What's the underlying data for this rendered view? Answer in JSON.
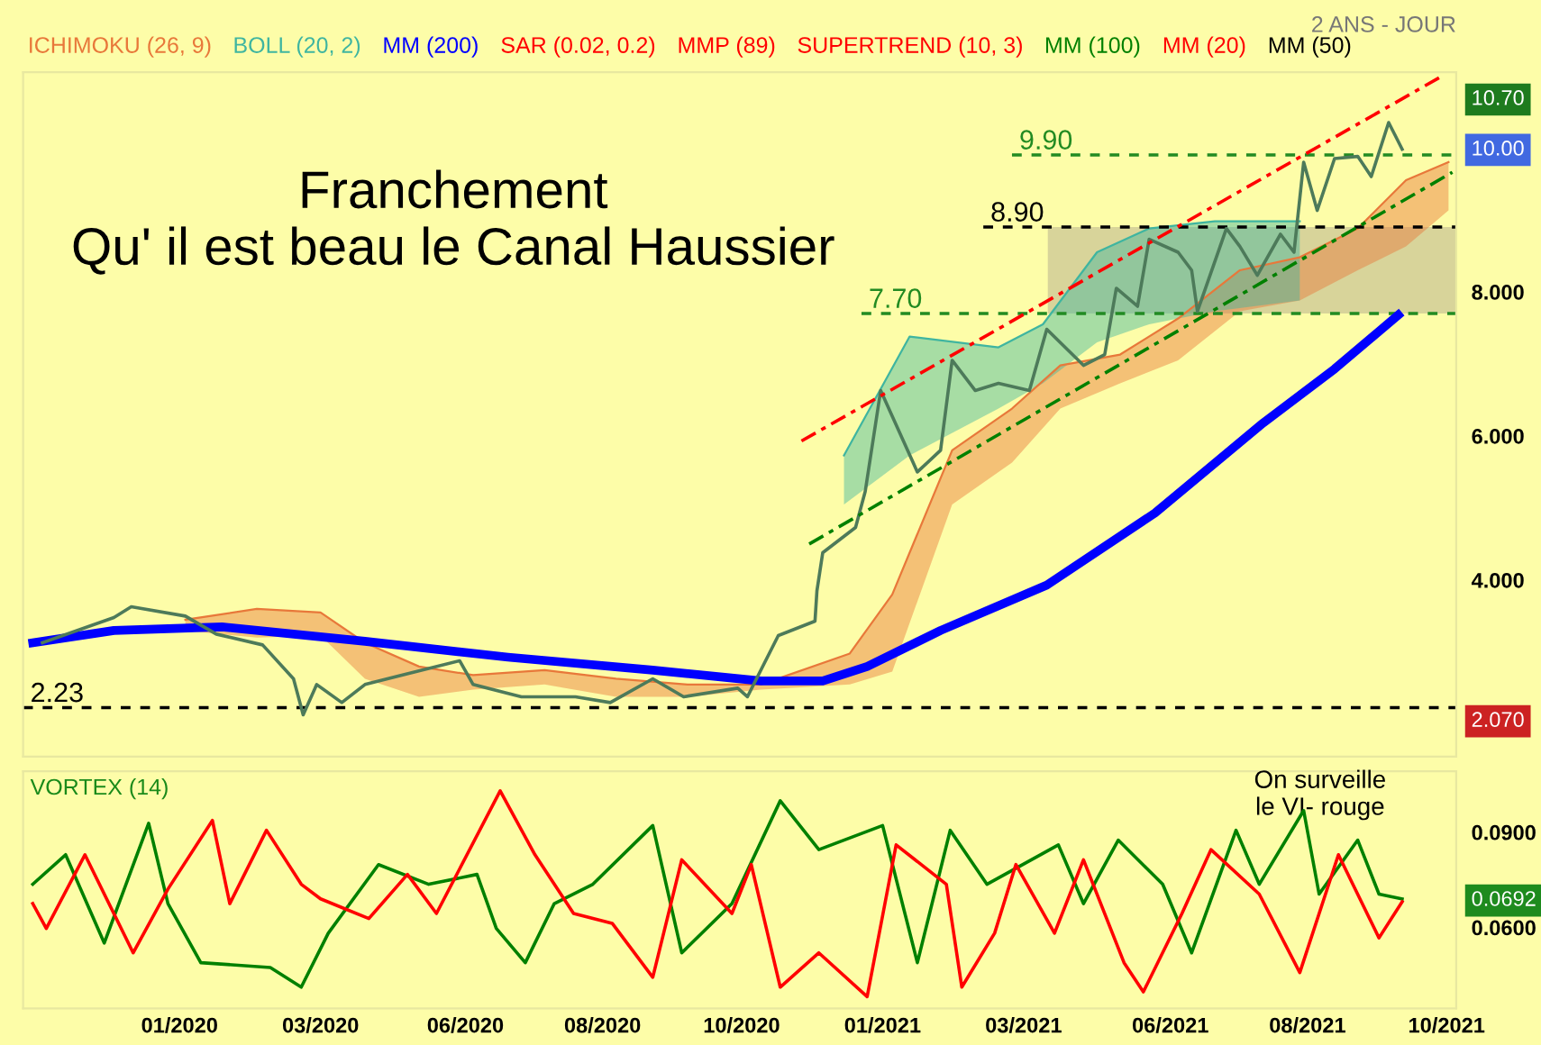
{
  "chart_data": [
    {
      "type": "line",
      "subtitle": "2 ANS - JOUR",
      "legend": "top left",
      "tick_labels": "y",
      "xlim": [
        "2019-10-16",
        "2021-10-27"
      ],
      "ylim": [
        1.55,
        11.05
      ],
      "yticks": [
        {
          "value": 2.07,
          "label": "2.070"
        },
        {
          "value": 4,
          "label": "4.000"
        },
        {
          "value": 6,
          "label": "6.000"
        },
        {
          "value": 8,
          "label": "8.000"
        },
        {
          "value": 10,
          "label": "10.00"
        },
        {
          "value": 10.7,
          "label": "10.70"
        }
      ],
      "annotations": [
        "Franchement\nQu' il est beau le Canal Haussier"
      ],
      "bands": [
        {
          "axis": "y",
          "from": 7.7,
          "to": 8.9,
          "color": "#d8d49a"
        }
      ],
      "ref_lines": [
        {
          "axis": "y",
          "value": 9.9,
          "label": "9.90",
          "color": "#228b22",
          "line_style": "dashed"
        },
        {
          "axis": "y",
          "value": 8.9,
          "label": "8.90",
          "color": "#000000",
          "line_style": "dashed"
        },
        {
          "axis": "y",
          "value": 7.7,
          "label": "7.70",
          "color": "#228b22",
          "line_style": "dashed"
        },
        {
          "axis": "y",
          "value": 2.23,
          "label": "2.23",
          "color": "#000000",
          "line_style": "dashed"
        }
      ],
      "series": [
        {
          "name": "ICHIMOKU (26, 9)",
          "type": "line",
          "color": "#e8783a",
          "x": [
            "2020-01-08",
            "2020-02-14",
            "2020-03-18",
            "2020-04-10",
            "2020-05-08",
            "2020-06-05",
            "2020-07-12",
            "2020-08-18",
            "2020-09-24",
            "2020-11-01",
            "2020-12-17",
            "2021-01-08",
            "2021-02-08",
            "2021-03-11",
            "2021-04-05",
            "2021-05-06",
            "2021-06-05",
            "2021-07-07",
            "2021-08-07",
            "2021-09-06",
            "2021-10-01",
            "2021-10-23"
          ],
          "values": [
            3.45,
            3.6,
            3.55,
            3.13,
            2.8,
            2.68,
            2.75,
            2.63,
            2.55,
            2.55,
            2.98,
            3.8,
            5.8,
            6.38,
            6.98,
            7.13,
            7.63,
            8.3,
            8.48,
            8.88,
            9.55,
            9.8
          ],
          "lower": [
            3.3,
            3.2,
            3.23,
            2.63,
            2.38,
            2.48,
            2.55,
            2.38,
            2.38,
            2.48,
            2.55,
            2.73,
            5.05,
            5.63,
            6.38,
            6.73,
            7.05,
            7.73,
            7.88,
            8.3,
            8.63,
            9.13
          ],
          "upper": [
            3.45,
            3.6,
            3.55,
            3.13,
            2.8,
            2.68,
            2.75,
            2.63,
            2.55,
            2.55,
            2.98,
            3.8,
            5.8,
            6.38,
            6.98,
            7.13,
            7.63,
            8.3,
            8.48,
            8.88,
            9.55,
            9.8
          ]
        },
        {
          "name": "BOLL (20, 2)",
          "type": "line",
          "color": "#3fb5a0",
          "x": [
            "2020-12-14",
            "2021-01-17",
            "2021-03-04",
            "2021-03-27",
            "2021-04-24",
            "2021-05-21",
            "2021-06-24",
            "2021-08-07"
          ],
          "values": [
            5.73,
            7.38,
            7.23,
            7.55,
            8.55,
            8.88,
            8.98,
            8.98
          ],
          "lower": [
            5.05,
            5.73,
            6.38,
            6.73,
            7.3,
            7.55,
            7.73,
            7.88
          ],
          "upper": [
            5.73,
            7.38,
            7.23,
            7.55,
            8.55,
            8.88,
            8.98,
            8.98
          ]
        },
        {
          "type": "line",
          "color": "#4d7a5a",
          "x": [
            "2019-10-26",
            "2019-12-02",
            "2019-12-11",
            "2020-01-08",
            "2020-01-24",
            "2020-02-17",
            "2020-03-04",
            "2020-03-09",
            "2020-03-16",
            "2020-03-29",
            "2020-04-10",
            "2020-04-29",
            "2020-05-29",
            "2020-06-05",
            "2020-06-30",
            "2020-07-28",
            "2020-08-15",
            "2020-09-06",
            "2020-09-22",
            "2020-10-20",
            "2020-10-25",
            "2020-11-10",
            "2020-11-29",
            "2020-11-30",
            "2020-12-03",
            "2020-12-20",
            "2020-12-25",
            "2021-01-02",
            "2021-01-21",
            "2021-02-02",
            "2021-02-08",
            "2021-02-20",
            "2021-03-04",
            "2021-03-20",
            "2021-03-29",
            "2021-04-17",
            "2021-04-28",
            "2021-05-04",
            "2021-05-15",
            "2021-05-21",
            "2021-06-05",
            "2021-06-12",
            "2021-06-15",
            "2021-06-30",
            "2021-07-07",
            "2021-07-16",
            "2021-07-28",
            "2021-08-04",
            "2021-08-09",
            "2021-08-16",
            "2021-08-25",
            "2021-09-06",
            "2021-09-13",
            "2021-09-22",
            "2021-09-29"
          ],
          "values": [
            3.13,
            3.48,
            3.63,
            3.5,
            3.25,
            3.1,
            2.63,
            2.13,
            2.55,
            2.3,
            2.55,
            2.68,
            2.88,
            2.55,
            2.38,
            2.38,
            2.3,
            2.63,
            2.38,
            2.5,
            2.38,
            3.23,
            3.43,
            3.85,
            4.38,
            4.73,
            5.23,
            6.63,
            5.5,
            5.8,
            7.05,
            6.63,
            6.73,
            6.63,
            7.48,
            6.98,
            7.13,
            8.05,
            7.8,
            8.73,
            8.55,
            8.3,
            7.73,
            8.88,
            8.63,
            8.23,
            8.8,
            8.55,
            9.8,
            9.13,
            9.85,
            9.88,
            9.6,
            10.35,
            9.98
          ]
        },
        {
          "name": "MM (200)",
          "color": "#0000ff",
          "x": [
            "2019-10-21",
            "2019-12-02",
            "2020-01-27",
            "2020-04-10",
            "2020-06-23",
            "2020-09-06",
            "2020-11-01",
            "2020-12-03",
            "2020-12-26",
            "2021-02-02",
            "2021-03-29",
            "2021-05-24",
            "2021-07-19",
            "2021-08-25",
            "2021-09-27"
          ],
          "values": [
            3.13,
            3.3,
            3.35,
            3.15,
            2.93,
            2.75,
            2.6,
            2.6,
            2.8,
            3.3,
            3.93,
            4.93,
            6.18,
            6.93,
            7.68
          ]
        },
        {
          "type": "line",
          "color": "#ff0000",
          "line_style": "dashdot",
          "x": [
            "2020-11-22",
            "2021-10-20"
          ],
          "values": [
            5.93,
            11.0
          ]
        },
        {
          "type": "line",
          "color": "#008000",
          "line_style": "dashdot",
          "x": [
            "2020-11-26",
            "2021-10-25"
          ],
          "values": [
            4.5,
            9.66
          ]
        },
        {
          "name": "SAR (0.02, 0.2)",
          "color": "#ff0000"
        },
        {
          "name": "MMP (89)",
          "color": "#ff0000"
        },
        {
          "name": "SUPERTREND (10, 3)",
          "color": "#ff0000"
        },
        {
          "name": "MM (100)",
          "color": "#008000"
        },
        {
          "name": "MM (20)",
          "color": "#ff0000"
        },
        {
          "name": "MM (50)",
          "color": "#000000"
        }
      ]
    },
    {
      "type": "line",
      "title": "VORTEX (14)",
      "xlim": [
        "2019-10-16",
        "2021-10-27"
      ],
      "ylim": [
        0.0345,
        0.1092
      ],
      "xticks": [
        {
          "value": "2020-01-05",
          "label": "01/2020"
        },
        {
          "value": "2020-03-18",
          "label": "03/2020"
        },
        {
          "value": "2020-06-01",
          "label": "06/2020"
        },
        {
          "value": "2020-08-11",
          "label": "08/2020"
        },
        {
          "value": "2020-10-22",
          "label": "10/2020"
        },
        {
          "value": "2021-01-03",
          "label": "01/2021"
        },
        {
          "value": "2021-03-17",
          "label": "03/2021"
        },
        {
          "value": "2021-06-01",
          "label": "06/2021"
        },
        {
          "value": "2021-08-11",
          "label": "08/2021"
        },
        {
          "value": "2021-10-22",
          "label": "10/2021"
        }
      ],
      "yticks": [
        {
          "value": 0.06,
          "label": "0.0600"
        },
        {
          "value": 0.0692,
          "label": "0.0692"
        },
        {
          "value": 0.09,
          "label": "0.0900"
        }
      ],
      "annotations": [
        "On surveille\nle VI- rouge"
      ],
      "series": [
        {
          "color": "#008000",
          "x": [
            "2019-10-21",
            "2019-11-07",
            "2019-11-27",
            "2019-12-20",
            "2019-12-30",
            "2020-01-16",
            "2020-02-21",
            "2020-03-08",
            "2020-03-22",
            "2020-04-17",
            "2020-05-13",
            "2020-06-07",
            "2020-06-17",
            "2020-07-02",
            "2020-07-17",
            "2020-08-06",
            "2020-09-06",
            "2020-09-21",
            "2020-10-17",
            "2020-11-11",
            "2020-12-01",
            "2021-01-03",
            "2021-01-21",
            "2021-02-07",
            "2021-02-26",
            "2021-04-04",
            "2021-04-17",
            "2021-05-05",
            "2021-05-28",
            "2021-06-12",
            "2021-07-05",
            "2021-07-17",
            "2021-08-09",
            "2021-08-17",
            "2021-09-06",
            "2021-09-17",
            "2021-09-29"
          ],
          "values": [
            0.0736,
            0.0829,
            0.0551,
            0.0928,
            0.0675,
            0.0489,
            0.0474,
            0.0412,
            0.0582,
            0.0798,
            0.0736,
            0.0767,
            0.0597,
            0.0489,
            0.0675,
            0.0736,
            0.0921,
            0.052,
            0.0675,
            0.0999,
            0.0845,
            0.0921,
            0.0489,
            0.0906,
            0.0736,
            0.086,
            0.0675,
            0.0875,
            0.0736,
            0.052,
            0.0906,
            0.0736,
            0.0968,
            0.0705,
            0.0875,
            0.0705,
            0.069
          ]
        },
        {
          "color": "#ff0000",
          "x": [
            "2019-10-21",
            "2019-10-28",
            "2019-11-17",
            "2019-12-12",
            "2019-12-30",
            "2020-01-22",
            "2020-01-31",
            "2020-02-19",
            "2020-03-08",
            "2020-03-18",
            "2020-04-12",
            "2020-05-02",
            "2020-05-17",
            "2020-06-19",
            "2020-07-07",
            "2020-07-27",
            "2020-08-16",
            "2020-09-06",
            "2020-09-21",
            "2020-10-17",
            "2020-10-27",
            "2020-11-11",
            "2020-12-01",
            "2020-12-26",
            "2021-01-10",
            "2021-02-05",
            "2021-02-13",
            "2021-03-02",
            "2021-03-13",
            "2021-04-02",
            "2021-04-17",
            "2021-05-08",
            "2021-05-18",
            "2021-06-07",
            "2021-06-22",
            "2021-07-17",
            "2021-08-07",
            "2021-08-27",
            "2021-09-17",
            "2021-09-29"
          ],
          "values": [
            0.0675,
            0.0597,
            0.0829,
            0.052,
            0.0721,
            0.0937,
            0.0675,
            0.0906,
            0.0736,
            0.069,
            0.0628,
            0.0767,
            0.0644,
            0.103,
            0.0829,
            0.0644,
            0.0613,
            0.0443,
            0.0813,
            0.0644,
            0.0798,
            0.0412,
            0.052,
            0.0382,
            0.086,
            0.0736,
            0.0412,
            0.0582,
            0.0798,
            0.0582,
            0.0813,
            0.0489,
            0.0397,
            0.0644,
            0.0845,
            0.0705,
            0.0458,
            0.0829,
            0.0567,
            0.0681
          ]
        }
      ]
    }
  ]
}
